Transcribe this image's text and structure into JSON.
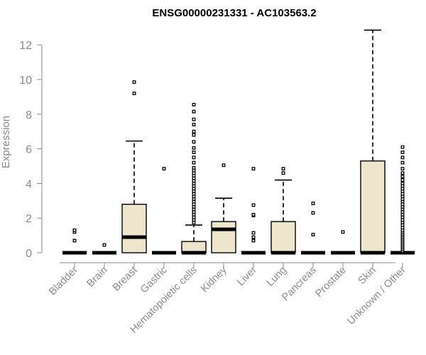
{
  "chart_data": {
    "type": "box",
    "title": "ENSG00000231331 - AC103563.2",
    "xlabel": "",
    "ylabel": "Expression",
    "ylim": [
      0,
      12.8
    ],
    "yticks": [
      0,
      2,
      4,
      6,
      8,
      10,
      12
    ],
    "grid": false,
    "box_color": "#ede6cc",
    "categories": [
      "Bladder",
      "Brain",
      "Breast",
      "Gastric",
      "Hematopoietic cells",
      "Kidney",
      "Liver",
      "Lung",
      "Pancreas",
      "Prostate",
      "Skin",
      "Unknown / Other"
    ],
    "boxes": [
      {
        "q1": 0,
        "median": 0,
        "q3": 0,
        "whisker_low": 0,
        "whisker_high": 0,
        "outliers": [
          1.2,
          1.3,
          0.7
        ]
      },
      {
        "q1": 0,
        "median": 0,
        "q3": 0,
        "whisker_low": 0,
        "whisker_high": 0,
        "outliers": [
          0.45
        ]
      },
      {
        "q1": 0,
        "median": 0.9,
        "q3": 2.8,
        "whisker_low": 0,
        "whisker_high": 6.45,
        "outliers": [
          9.2,
          9.85
        ]
      },
      {
        "q1": 0,
        "median": 0,
        "q3": 0,
        "whisker_low": 0,
        "whisker_high": 0,
        "outliers": [
          4.85
        ]
      },
      {
        "q1": 0,
        "median": 0,
        "q3": 0.65,
        "whisker_low": 0,
        "whisker_high": 1.6,
        "outliers": [
          1.75,
          1.9,
          2.05,
          2.2,
          2.35,
          2.5,
          2.65,
          2.8,
          2.95,
          3.1,
          3.25,
          3.4,
          3.55,
          3.7,
          3.85,
          4.0,
          4.15,
          4.3,
          4.45,
          4.6,
          4.75,
          4.9,
          5.2,
          5.5,
          5.8,
          6.05,
          6.4,
          6.8,
          7.0,
          7.4,
          7.7,
          8.15,
          8.55
        ]
      },
      {
        "q1": 0,
        "median": 1.35,
        "q3": 1.8,
        "whisker_low": 0,
        "whisker_high": 3.15,
        "outliers": [
          5.05
        ]
      },
      {
        "q1": 0,
        "median": 0,
        "q3": 0,
        "whisker_low": 0,
        "whisker_high": 0,
        "outliers": [
          0.7,
          0.9,
          1.15,
          2.15,
          2.2,
          2.75,
          4.85
        ]
      },
      {
        "q1": 0,
        "median": 0,
        "q3": 1.8,
        "whisker_low": 0,
        "whisker_high": 4.2,
        "outliers": [
          4.6,
          4.85
        ]
      },
      {
        "q1": 0,
        "median": 0,
        "q3": 0,
        "whisker_low": 0,
        "whisker_high": 0,
        "outliers": [
          1.05,
          2.3,
          2.85
        ]
      },
      {
        "q1": 0,
        "median": 0,
        "q3": 0,
        "whisker_low": 0,
        "whisker_high": 0,
        "outliers": [
          1.2
        ]
      },
      {
        "q1": 0,
        "median": 0,
        "q3": 5.3,
        "whisker_low": 0,
        "whisker_high": 12.85,
        "outliers": []
      },
      {
        "q1": 0,
        "median": 0,
        "q3": 0,
        "whisker_low": 0,
        "whisker_high": 0,
        "outliers": [
          0.1,
          0.2,
          0.3,
          0.4,
          0.5,
          0.6,
          0.7,
          0.8,
          0.9,
          1.0,
          1.1,
          1.2,
          1.3,
          1.45,
          1.6,
          1.75,
          1.9,
          2.05,
          2.2,
          2.35,
          2.5,
          2.65,
          2.8,
          2.95,
          3.1,
          3.25,
          3.4,
          3.55,
          3.7,
          3.85,
          4.0,
          4.2,
          4.4,
          4.6,
          4.85,
          5.2,
          5.5,
          5.8,
          6.1
        ]
      }
    ]
  }
}
